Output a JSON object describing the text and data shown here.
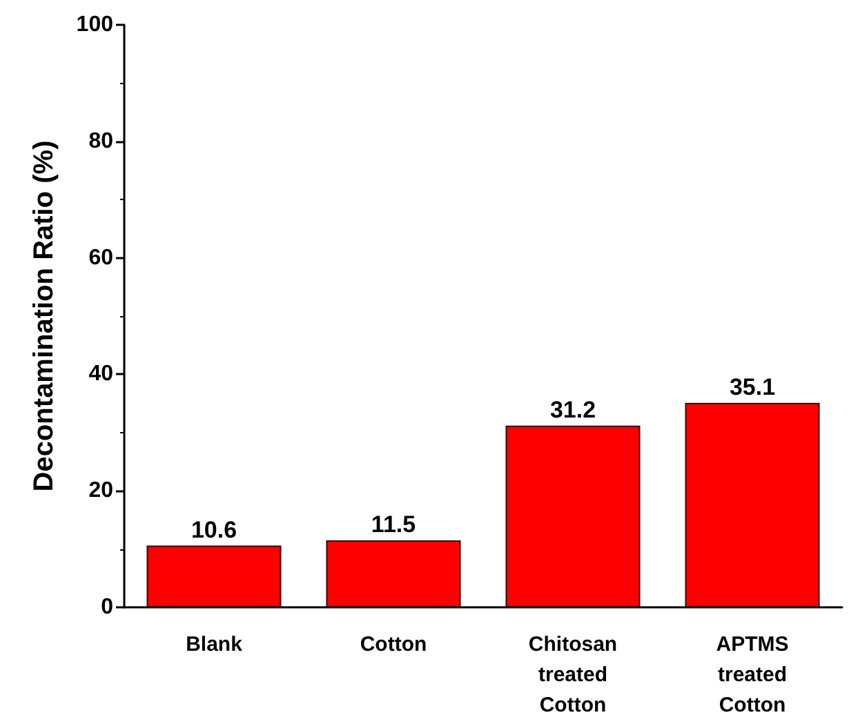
{
  "chart_data": {
    "type": "bar",
    "ylabel": "Decontamination Ratio (%)",
    "categories": [
      "Blank",
      "Cotton",
      "Chitosan\ntreated\nCotton",
      "APTMS\ntreated\nCotton"
    ],
    "values": [
      10.6,
      11.5,
      31.2,
      35.1
    ],
    "color": "#ff0000",
    "ylim": [
      0,
      100
    ],
    "yticks": [
      0,
      20,
      40,
      60,
      80,
      100
    ],
    "grid": false,
    "data_labels": true
  }
}
